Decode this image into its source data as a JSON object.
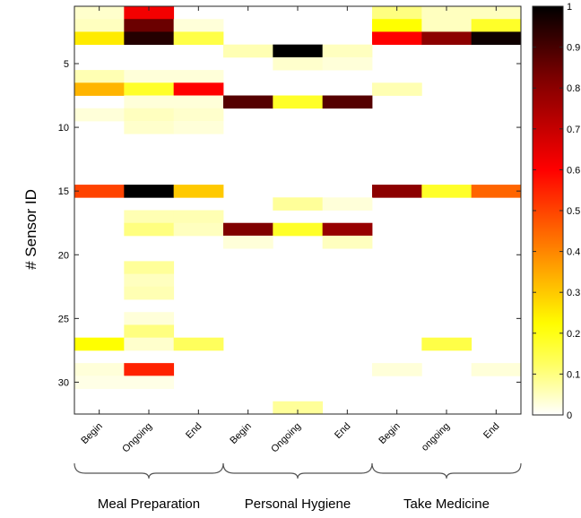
{
  "chart_data": {
    "type": "heatmap",
    "title": "",
    "ylabel": "# Sensor ID",
    "xlabel": "",
    "columns": [
      "Begin",
      "Ongoing",
      "End",
      "Begin",
      "Ongoing",
      "End",
      "Begin",
      "ongoing",
      "End"
    ],
    "groups": [
      {
        "label": "Meal Preparation",
        "columns": [
          0,
          1,
          2
        ]
      },
      {
        "label": "Personal Hygiene",
        "columns": [
          3,
          4,
          5
        ]
      },
      {
        "label": "Take Medicine",
        "columns": [
          6,
          7,
          8
        ]
      }
    ],
    "rows": 32,
    "ylim": [
      0.5,
      32.5
    ],
    "yticks": [
      5,
      10,
      15,
      20,
      25,
      30
    ],
    "colorbar": {
      "min": 0,
      "max": 1,
      "ticks": [
        0,
        0.1,
        0.2,
        0.3,
        0.4,
        0.5,
        0.6,
        0.7,
        0.8,
        0.9,
        1
      ],
      "tick_labels": [
        "0",
        "0.1",
        "0.2",
        "0.3",
        "0.4",
        "0.5",
        "0.6",
        "0.7",
        "0.8",
        "0.9",
        "1"
      ],
      "colormap": "hot (reversed)",
      "stops": [
        "#ffffff",
        "#ffff66",
        "#ffff00",
        "#ff0000",
        "#800000",
        "#000000"
      ]
    },
    "values": [
      [
        0.04,
        0.62,
        0.0,
        0.0,
        0.0,
        0.0,
        0.1,
        0.05,
        0.05
      ],
      [
        0.05,
        0.85,
        0.03,
        0.0,
        0.0,
        0.0,
        0.22,
        0.05,
        0.18
      ],
      [
        0.25,
        0.95,
        0.15,
        0.0,
        0.0,
        0.0,
        0.6,
        0.8,
        0.98
      ],
      [
        0.0,
        0.0,
        0.0,
        0.06,
        1.0,
        0.05,
        0.0,
        0.0,
        0.0
      ],
      [
        0.0,
        0.0,
        0.0,
        0.0,
        0.04,
        0.03,
        0.0,
        0.0,
        0.0
      ],
      [
        0.06,
        0.03,
        0.03,
        0.0,
        0.0,
        0.0,
        0.0,
        0.0,
        0.0
      ],
      [
        0.33,
        0.18,
        0.6,
        0.0,
        0.0,
        0.0,
        0.06,
        0.0,
        0.0
      ],
      [
        0.0,
        0.03,
        0.03,
        0.88,
        0.18,
        0.88,
        0.0,
        0.0,
        0.0
      ],
      [
        0.03,
        0.05,
        0.04,
        0.0,
        0.0,
        0.0,
        0.0,
        0.0,
        0.0
      ],
      [
        0.0,
        0.04,
        0.03,
        0.0,
        0.0,
        0.0,
        0.0,
        0.0,
        0.0
      ],
      [
        0.0,
        0.0,
        0.0,
        0.0,
        0.0,
        0.0,
        0.0,
        0.0,
        0.0
      ],
      [
        0.0,
        0.0,
        0.0,
        0.0,
        0.0,
        0.0,
        0.0,
        0.0,
        0.0
      ],
      [
        0.0,
        0.0,
        0.0,
        0.0,
        0.0,
        0.0,
        0.0,
        0.0,
        0.0
      ],
      [
        0.0,
        0.0,
        0.0,
        0.0,
        0.0,
        0.0,
        0.0,
        0.0,
        0.0
      ],
      [
        0.5,
        1.0,
        0.3,
        0.0,
        0.0,
        0.0,
        0.8,
        0.18,
        0.45
      ],
      [
        0.0,
        0.0,
        0.0,
        0.0,
        0.08,
        0.03,
        0.0,
        0.0,
        0.0
      ],
      [
        0.0,
        0.06,
        0.06,
        0.0,
        0.0,
        0.0,
        0.0,
        0.0,
        0.0
      ],
      [
        0.0,
        0.1,
        0.05,
        0.82,
        0.18,
        0.78,
        0.0,
        0.0,
        0.0
      ],
      [
        0.0,
        0.0,
        0.0,
        0.03,
        0.0,
        0.05,
        0.0,
        0.0,
        0.0
      ],
      [
        0.0,
        0.0,
        0.0,
        0.0,
        0.0,
        0.0,
        0.0,
        0.0,
        0.0
      ],
      [
        0.0,
        0.08,
        0.0,
        0.0,
        0.0,
        0.0,
        0.0,
        0.0,
        0.0
      ],
      [
        0.0,
        0.05,
        0.0,
        0.0,
        0.0,
        0.0,
        0.0,
        0.0,
        0.0
      ],
      [
        0.0,
        0.06,
        0.0,
        0.0,
        0.0,
        0.0,
        0.0,
        0.0,
        0.0
      ],
      [
        0.0,
        0.0,
        0.0,
        0.0,
        0.0,
        0.0,
        0.0,
        0.0,
        0.0
      ],
      [
        0.0,
        0.03,
        0.0,
        0.0,
        0.0,
        0.0,
        0.0,
        0.0,
        0.0
      ],
      [
        0.0,
        0.1,
        0.0,
        0.0,
        0.0,
        0.0,
        0.0,
        0.0,
        0.0
      ],
      [
        0.22,
        0.04,
        0.13,
        0.0,
        0.0,
        0.0,
        0.0,
        0.15,
        0.0
      ],
      [
        0.0,
        0.0,
        0.0,
        0.0,
        0.0,
        0.0,
        0.0,
        0.0,
        0.0
      ],
      [
        0.03,
        0.55,
        0.0,
        0.0,
        0.0,
        0.0,
        0.03,
        0.0,
        0.03
      ],
      [
        0.02,
        0.02,
        0.0,
        0.0,
        0.0,
        0.0,
        0.0,
        0.0,
        0.0
      ],
      [
        0.0,
        0.0,
        0.0,
        0.0,
        0.0,
        0.0,
        0.0,
        0.0,
        0.0
      ],
      [
        0.0,
        0.0,
        0.0,
        0.0,
        0.08,
        0.0,
        0.0,
        0.0,
        0.0
      ]
    ]
  }
}
